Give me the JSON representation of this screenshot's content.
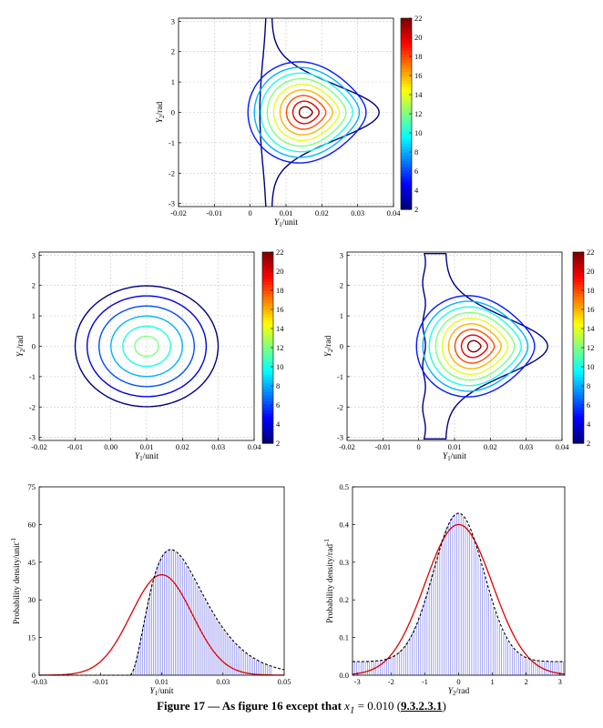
{
  "chart_data": [
    {
      "type": "contour",
      "id": "top",
      "xlabel": "Y_1/unit",
      "ylabel": "Y_2/rad",
      "xlim": [
        -0.02,
        0.04
      ],
      "ylim": [
        -3.1,
        3.1
      ],
      "xticks": [
        "-0.02",
        "-0.01",
        "0",
        "0.01",
        "0.02",
        "0.03",
        "0.04"
      ],
      "xtick_values": [
        -0.02,
        -0.01,
        0,
        0.01,
        0.02,
        0.03,
        0.04
      ],
      "yticks": [
        "3",
        "2",
        "1",
        "0",
        "-1",
        "-2",
        "-3"
      ],
      "ytick_values": [
        3,
        2,
        1,
        0,
        -1,
        -2,
        -3
      ],
      "grid": true,
      "shape": "triangular",
      "peak": [
        0.0155,
        0
      ],
      "levels": [
        2,
        5,
        8,
        10,
        12,
        14,
        16,
        18,
        20,
        22
      ],
      "colorbar": {
        "min": 2,
        "max": 22,
        "ticks": [
          "22",
          "20",
          "18",
          "16",
          "14",
          "12",
          "10",
          "8",
          "6",
          "4",
          "2"
        ]
      }
    },
    {
      "type": "contour",
      "id": "mid-left",
      "xlabel": "Y_1/unit",
      "ylabel": "Y_2/rad",
      "xlim": [
        -0.02,
        0.04
      ],
      "ylim": [
        -3.1,
        3.1
      ],
      "xticks": [
        "-0.02",
        "-0.01",
        "0.00",
        "0.01",
        "0.02",
        "0.03",
        "0.04"
      ],
      "xtick_values": [
        -0.02,
        -0.01,
        0,
        0.01,
        0.02,
        0.03,
        0.04
      ],
      "yticks": [
        "3",
        "2",
        "1",
        "0",
        "-1",
        "-2",
        "-3"
      ],
      "ytick_values": [
        3,
        2,
        1,
        0,
        -1,
        -2,
        -3
      ],
      "grid": true,
      "shape": "elliptical",
      "peak": [
        0.01,
        0
      ],
      "levels": [
        2,
        4,
        6,
        8,
        10,
        12
      ],
      "colorbar": {
        "min": 2,
        "max": 22,
        "ticks": [
          "22",
          "20",
          "18",
          "16",
          "14",
          "12",
          "10",
          "8",
          "6",
          "4",
          "2"
        ]
      }
    },
    {
      "type": "contour",
      "id": "mid-right",
      "xlabel": "Y_1/unit",
      "ylabel": "Y_2/rad",
      "xlim": [
        -0.02,
        0.04
      ],
      "ylim": [
        -3.1,
        3.1
      ],
      "xticks": [
        "-0.02",
        "-0.01",
        "0",
        "0.01",
        "0.02",
        "0.03",
        "0.04"
      ],
      "xtick_values": [
        -0.02,
        -0.01,
        0,
        0.01,
        0.02,
        0.03,
        0.04
      ],
      "yticks": [
        "3",
        "2",
        "1",
        "0",
        "-1",
        "-2",
        "-3"
      ],
      "ytick_values": [
        3,
        2,
        1,
        0,
        -1,
        -2,
        -3
      ],
      "grid": true,
      "shape": "triangular",
      "peak": [
        0.0155,
        0
      ],
      "levels": [
        2,
        5,
        8,
        10,
        12,
        14,
        16,
        18,
        20,
        22
      ],
      "colorbar": {
        "min": 2,
        "max": 22,
        "ticks": [
          "22",
          "20",
          "18",
          "16",
          "14",
          "12",
          "10",
          "8",
          "6",
          "4",
          "2"
        ]
      }
    },
    {
      "type": "histogram",
      "id": "bottom-left",
      "xlabel": "Y_1/unit",
      "ylabel": "Probability density/unit^-1",
      "xlim": [
        -0.03,
        0.05
      ],
      "ylim": [
        0,
        75
      ],
      "xticks": [
        "-0.03",
        "-0.01",
        "0.01",
        "0.03",
        "0.05"
      ],
      "xtick_values": [
        -0.03,
        -0.01,
        0.01,
        0.03,
        0.05
      ],
      "yticks": [
        "75",
        "60",
        "45",
        "30",
        "15",
        "0"
      ],
      "ytick_values": [
        75,
        60,
        45,
        30,
        15,
        0
      ],
      "histogram": {
        "start": -0.0005,
        "end": 0.046,
        "bin_width": 0.0006,
        "peak_x": 0.013,
        "peak_y": 50
      },
      "series": [
        {
          "style": "histogram bars",
          "color": "#7d7df0"
        },
        {
          "style": "dashed",
          "color": "#000000",
          "description": "kernel density",
          "peak": [
            0.013,
            50
          ]
        },
        {
          "style": "solid",
          "color": "#e00000",
          "description": "Gaussian",
          "mean": 0.01,
          "sd": 0.01,
          "peak": 40
        }
      ]
    },
    {
      "type": "histogram",
      "id": "bottom-right",
      "xlabel": "Y_2/rad",
      "ylabel": "Probability density/rad^-1",
      "xlim": [
        -3.14,
        3.14
      ],
      "ylim": [
        0,
        0.5
      ],
      "xticks": [
        "-3",
        "-2",
        "-1",
        "0",
        "1",
        "2",
        "3"
      ],
      "xtick_values": [
        -3,
        -2,
        -1,
        0,
        1,
        2,
        3
      ],
      "yticks": [
        "0.5",
        "0.4",
        "0.3",
        "0.2",
        "0.1",
        "0.0"
      ],
      "ytick_values": [
        0.5,
        0.4,
        0.3,
        0.2,
        0.1,
        0
      ],
      "histogram": {
        "start": -3.14,
        "end": 3.14,
        "bin_width": 0.063,
        "peak_x": 0,
        "peak_y": 0.43,
        "tail": 0.036
      },
      "series": [
        {
          "style": "histogram bars",
          "color": "#7d7df0"
        },
        {
          "style": "dashed",
          "color": "#000000",
          "description": "kernel density",
          "peak": [
            0,
            0.43
          ]
        },
        {
          "style": "solid",
          "color": "#e00000",
          "description": "Gaussian",
          "mean": 0,
          "sd": 1.0,
          "peak": 0.4
        }
      ]
    }
  ],
  "caption": {
    "prefix": "Figure 17 — As figure 16 except that ",
    "math": "x",
    "math_sub": "1",
    "eq": " = 0.010 (",
    "ref": "9.3.2.3.1",
    "suffix": ")"
  }
}
